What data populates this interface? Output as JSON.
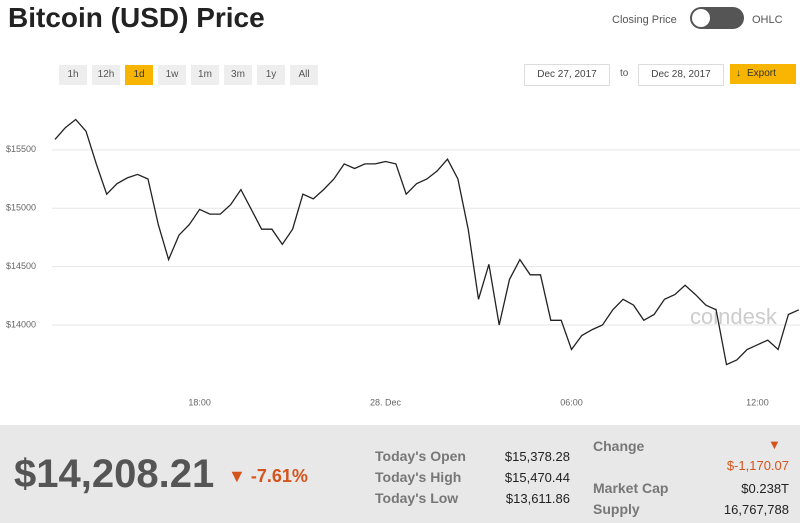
{
  "header": {
    "title": "Bitcoin (USD) Price",
    "toggle_left": "Closing Price",
    "toggle_right": "OHLC"
  },
  "ranges": [
    "1h",
    "12h",
    "1d",
    "1w",
    "1m",
    "3m",
    "1y",
    "All"
  ],
  "active_range": "1d",
  "date_from": "Dec 27, 2017",
  "date_sep": "to",
  "date_to": "Dec 28, 2017",
  "export": "Export",
  "watermark": "coindesk",
  "chart_data": {
    "type": "line",
    "categories": [
      null,
      null,
      null,
      null,
      null,
      null,
      null,
      null,
      null,
      null,
      null,
      null,
      null,
      null,
      "18:00",
      null,
      null,
      null,
      null,
      null,
      null,
      null,
      null,
      null,
      null,
      null,
      null,
      null,
      null,
      null,
      null,
      null,
      "28. Dec",
      null,
      null,
      null,
      null,
      null,
      null,
      null,
      null,
      null,
      null,
      null,
      null,
      null,
      null,
      null,
      null,
      null,
      "06:00",
      null,
      null,
      null,
      null,
      null,
      null,
      null,
      null,
      null,
      null,
      null,
      null,
      null,
      null,
      null,
      null,
      null,
      "12:00",
      null,
      null,
      null,
      null
    ],
    "series": [
      {
        "name": "Closing Price",
        "color": "#222222",
        "values": [
          15590,
          15690,
          15760,
          15660,
          15380,
          15120,
          15210,
          15260,
          15290,
          15250,
          14860,
          14560,
          14770,
          14860,
          14990,
          14950,
          14950,
          15030,
          15160,
          14990,
          14820,
          14820,
          14690,
          14820,
          15120,
          15080,
          15160,
          15250,
          15380,
          15340,
          15380,
          15380,
          15400,
          15380,
          15120,
          15210,
          15250,
          15320,
          15420,
          15250,
          14820,
          14220,
          14520,
          14000,
          14390,
          14560,
          14430,
          14430,
          14040,
          14040,
          13790,
          13910,
          13960,
          14000,
          14130,
          14220,
          14170,
          14040,
          14090,
          14220,
          14260,
          14340,
          14260,
          14170,
          14130,
          13660,
          13700,
          13790,
          13830,
          13870,
          13790,
          14090,
          14130
        ]
      }
    ],
    "ylim": [
      13400,
      15970
    ],
    "yticks": [
      {
        "value": 14000,
        "label": "$14000"
      },
      {
        "value": 14500,
        "label": "$14500"
      },
      {
        "value": 15000,
        "label": "$15000"
      },
      {
        "value": 15500,
        "label": "$15500"
      }
    ],
    "grid": true
  },
  "summary": {
    "price": "$14,208.21",
    "change_pct": "-7.61%",
    "stats": [
      [
        "Today's Open",
        "$15,378.28"
      ],
      [
        "Today's High",
        "$15,470.44"
      ],
      [
        "Today's Low",
        "$13,611.86"
      ]
    ],
    "change_label": "Change",
    "change_value": "$-1,170.07",
    "market_cap_label": "Market Cap",
    "market_cap": "$0.238T",
    "supply_label": "Supply",
    "supply": "16,767,788"
  }
}
